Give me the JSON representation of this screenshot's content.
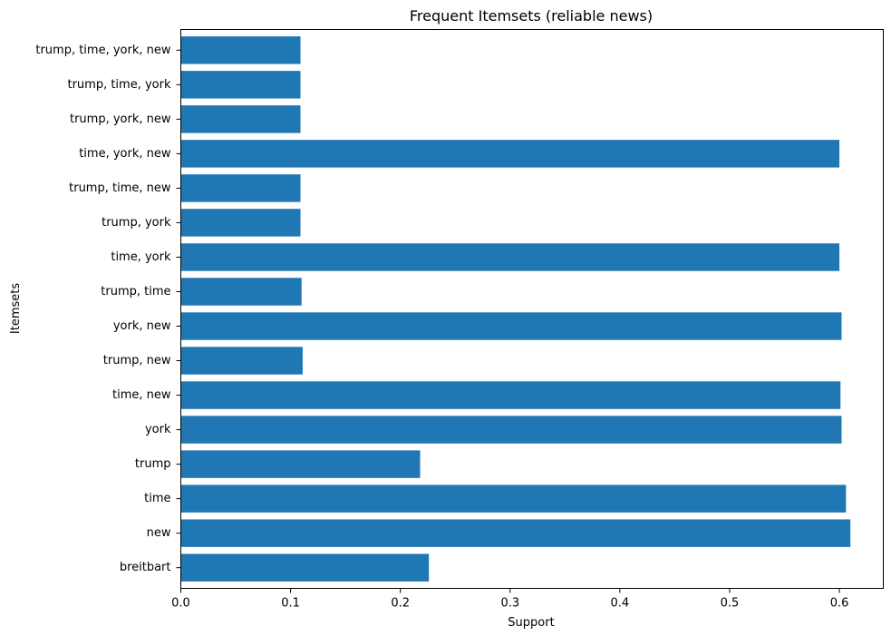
{
  "chart_data": {
    "type": "bar",
    "orientation": "horizontal",
    "title": "Frequent Itemsets (reliable news)",
    "xlabel": "Support",
    "ylabel": "Itemsets",
    "categories": [
      "breitbart",
      "new",
      "time",
      "trump",
      "york",
      "time, new",
      "trump, new",
      "york, new",
      "trump, time",
      "time, york",
      "trump, york",
      "trump, time, new",
      "time, york, new",
      "trump, york, new",
      "trump, time, york",
      "trump, time, york, new"
    ],
    "values": [
      0.226,
      0.61,
      0.606,
      0.218,
      0.602,
      0.601,
      0.111,
      0.602,
      0.11,
      0.6,
      0.109,
      0.109,
      0.6,
      0.109,
      0.109,
      0.109
    ],
    "xlim": [
      0,
      0.64
    ],
    "xticks": [
      0.0,
      0.1,
      0.2,
      0.3,
      0.4,
      0.5,
      0.6
    ],
    "xtick_labels": [
      "0.0",
      "0.1",
      "0.2",
      "0.3",
      "0.4",
      "0.5",
      "0.6"
    ],
    "grid": false,
    "colors": {
      "bar": "#1f77b4",
      "axis": "#000000"
    }
  }
}
